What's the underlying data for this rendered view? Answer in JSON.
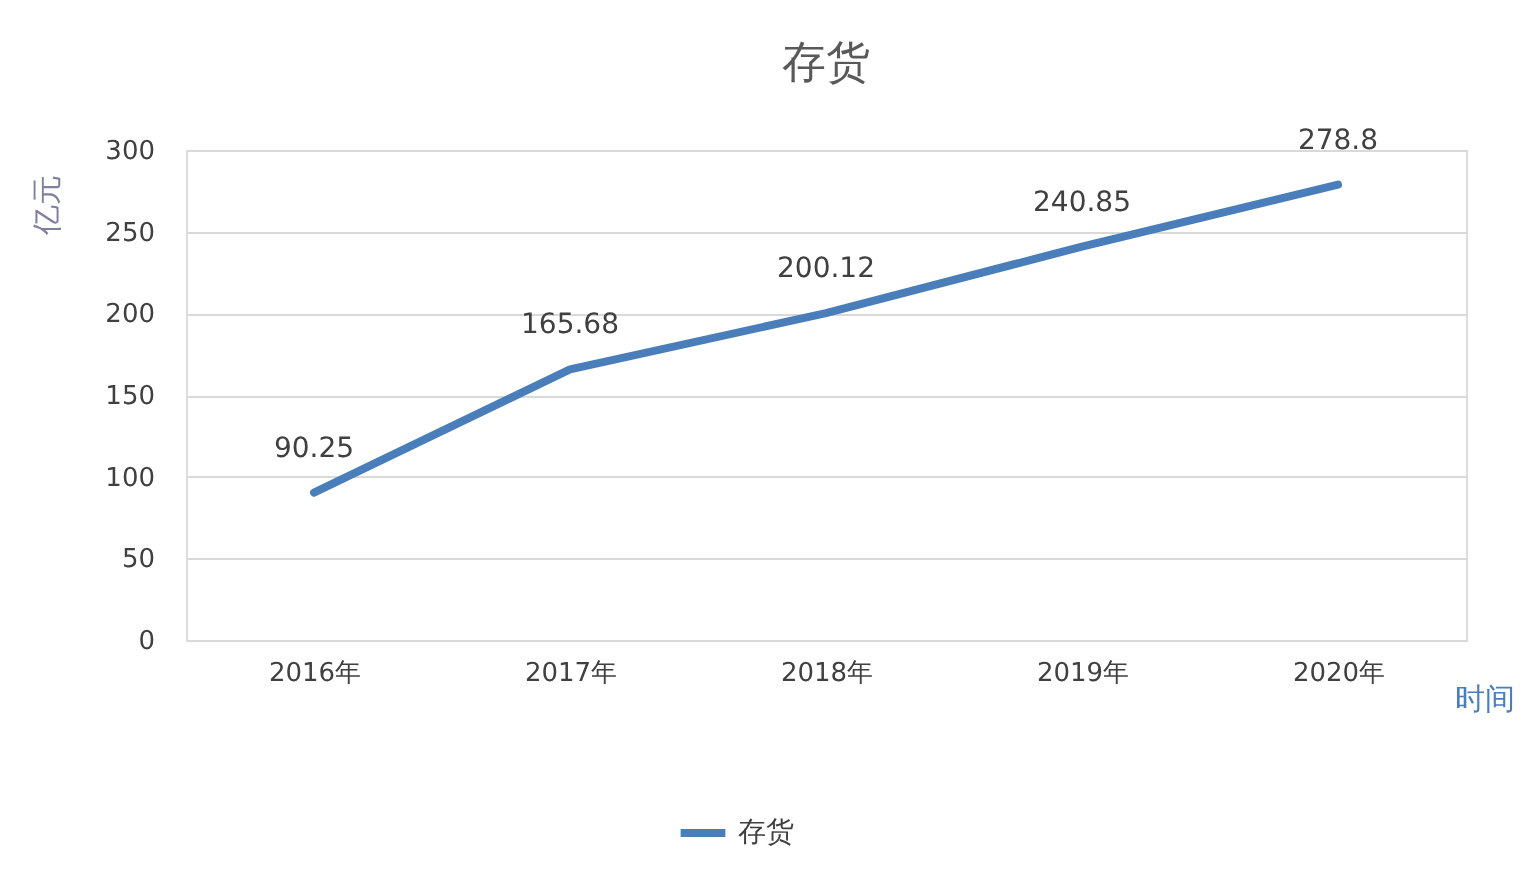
{
  "chart_data": {
    "type": "line",
    "title": "存货",
    "xlabel": "时间",
    "ylabel": "亿元",
    "categories": [
      "2016年",
      "2017年",
      "2018年",
      "2019年",
      "2020年"
    ],
    "series": [
      {
        "name": "存货",
        "color": "#4a7ebb",
        "values": [
          90.25,
          165.68,
          200.12,
          240.85,
          278.8
        ]
      }
    ],
    "ylim": [
      0,
      300
    ],
    "yticks": [
      0,
      50,
      100,
      150,
      200,
      250,
      300
    ],
    "grid": "y",
    "legend": "bottom",
    "data_labels": true,
    "marker": "none",
    "line_style": "solid"
  }
}
